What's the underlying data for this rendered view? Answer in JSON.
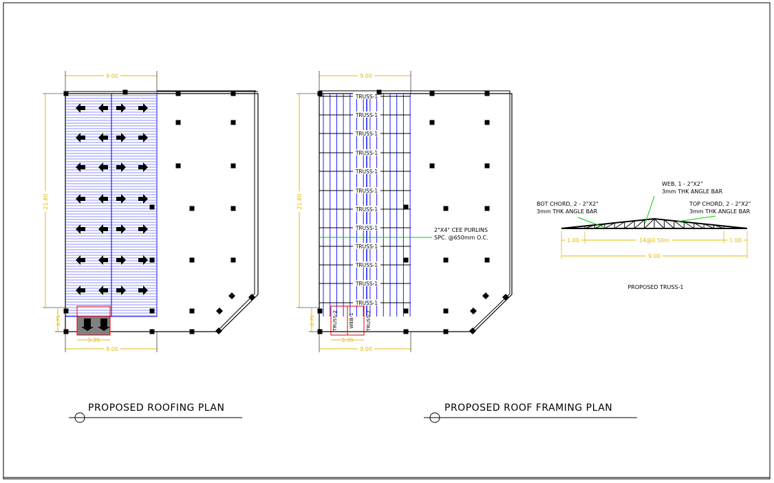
{
  "colors": {
    "line": "#000000",
    "blue": "#1a1aff",
    "dim": "#e6b800",
    "green": "#00c800",
    "red": "#e00000",
    "gray": "#808080"
  },
  "roofing_plan": {
    "title": "PROPOSED ROOFING PLAN",
    "dim_width_top": "9.00",
    "dim_width_bottom": "9.00",
    "dim_height": "21.80",
    "dim_bottom_height": "2.75",
    "dim_bottom_width": "3.35"
  },
  "framing_plan": {
    "title": "PROPOSED ROOF FRAMING PLAN",
    "dim_width_top": "9.00",
    "dim_width_bottom": "9.00",
    "dim_height": "21.80",
    "dim_bottom_height": "2.75",
    "dim_bottom_width": "3.35",
    "truss_labels": [
      "TRUSS-1",
      "TRUSS-1",
      "TRUSS-1",
      "TRUSS-1",
      "TRUSS-1",
      "TRUSS-1",
      "TRUSS-1",
      "TRUSS-1",
      "TRUSS-1",
      "TRUSS-1",
      "TRUSS-1",
      "TRUSS-1"
    ],
    "purlin_note_line1": "2\"X4\" CEE PURLINS",
    "purlin_note_line2": "SPC. @650mm O.C.",
    "small_truss_left": "TRUSS-2",
    "small_web": "WEB-1",
    "small_truss_right": "TRUSS-2"
  },
  "truss_detail": {
    "title": "PROPOSED TRUSS-1",
    "web_note_line1": "WEB, 1 - 2\"X2\"",
    "web_note_line2": "3mm THK ANGLE BAR",
    "bot_chord_line1": "BOT CHORD, 2 - 2\"X2\"",
    "bot_chord_line2": "3mm THK ANGLE BAR",
    "top_chord_line1": "TOP CHORD, 2 - 2\"X2\"",
    "top_chord_line2": "3mm THK ANGLE BAR",
    "dim_left": "1.00",
    "dim_mid": "14@0.50m",
    "dim_right": "1.00",
    "dim_total": "9.00"
  }
}
